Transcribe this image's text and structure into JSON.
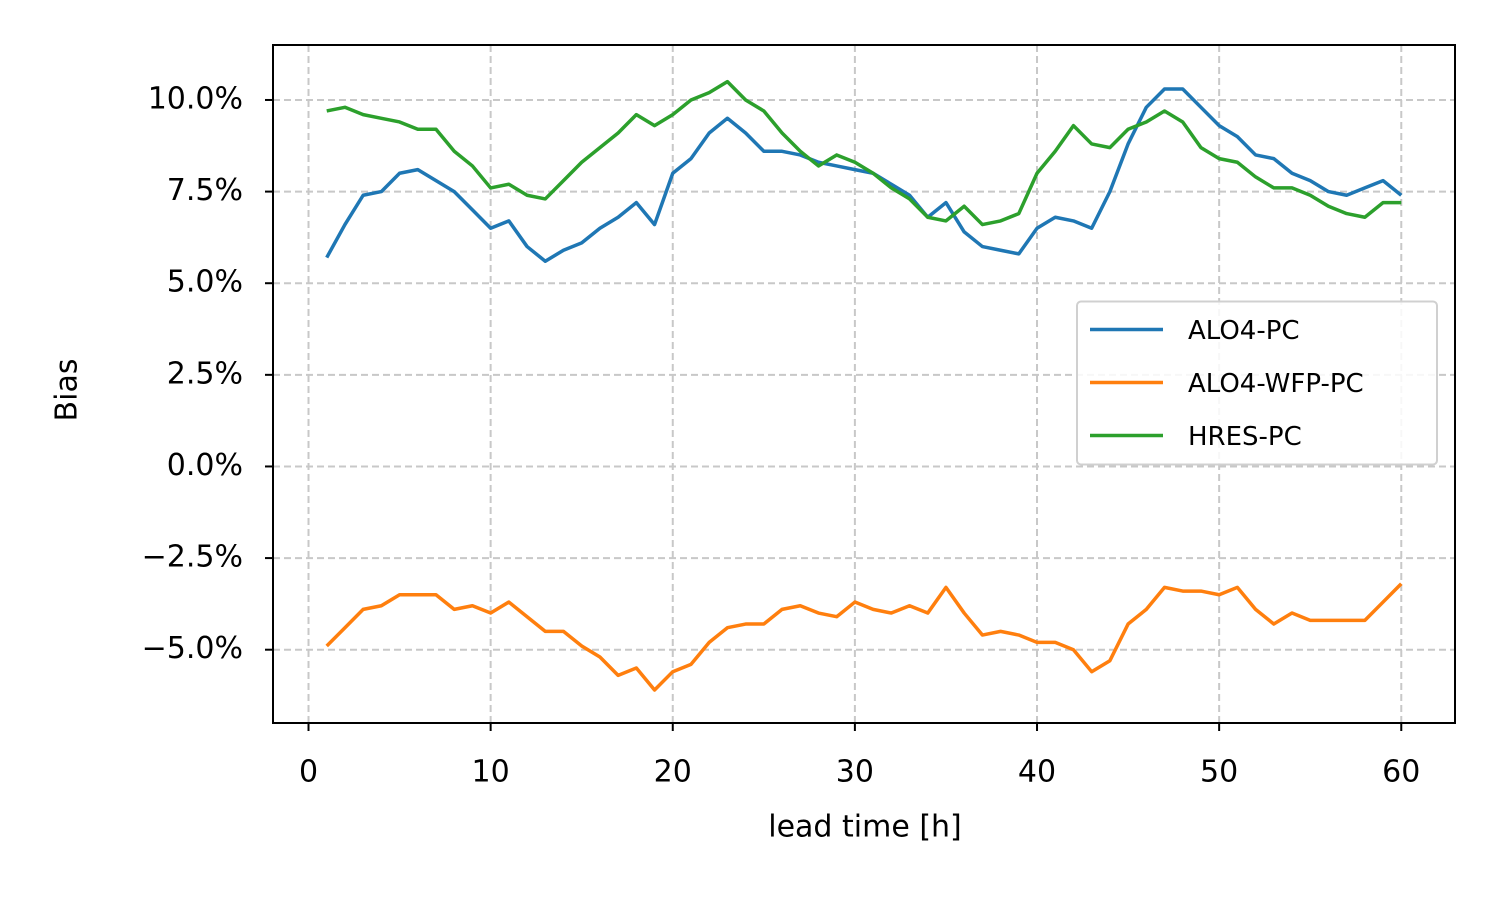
{
  "chart_data": {
    "type": "line",
    "x_label": "lead time [h]",
    "y_label": "Bias",
    "x": [
      1,
      2,
      3,
      4,
      5,
      6,
      7,
      8,
      9,
      10,
      11,
      12,
      13,
      14,
      15,
      16,
      17,
      18,
      19,
      20,
      21,
      22,
      23,
      24,
      25,
      26,
      27,
      28,
      29,
      30,
      31,
      32,
      33,
      34,
      35,
      36,
      37,
      38,
      39,
      40,
      41,
      42,
      43,
      44,
      45,
      46,
      47,
      48,
      49,
      50,
      51,
      52,
      53,
      54,
      55,
      56,
      57,
      58,
      59,
      60
    ],
    "series": [
      {
        "name": "ALO4-PC",
        "color": "#1f77b4",
        "values": [
          5.7,
          6.6,
          7.4,
          7.5,
          8.0,
          8.1,
          7.8,
          7.5,
          7.0,
          6.5,
          6.7,
          6.0,
          5.6,
          5.9,
          6.1,
          6.5,
          6.8,
          7.2,
          6.6,
          8.0,
          8.4,
          9.1,
          9.5,
          9.1,
          8.6,
          8.6,
          8.5,
          8.3,
          8.2,
          8.1,
          8.0,
          7.7,
          7.4,
          6.8,
          7.2,
          6.4,
          6.0,
          5.9,
          5.8,
          6.5,
          6.8,
          6.7,
          6.5,
          7.5,
          8.8,
          9.8,
          10.3,
          10.3,
          9.8,
          9.3,
          9.0,
          8.5,
          8.4,
          8.0,
          7.8,
          7.5,
          7.4,
          7.6,
          7.8,
          7.4
        ]
      },
      {
        "name": "ALO4-WFP-PC",
        "color": "#ff7f0e",
        "values": [
          -4.9,
          -4.4,
          -3.9,
          -3.8,
          -3.5,
          -3.5,
          -3.5,
          -3.9,
          -3.8,
          -4.0,
          -3.7,
          -4.1,
          -4.5,
          -4.5,
          -4.9,
          -5.2,
          -5.7,
          -5.5,
          -6.1,
          -5.6,
          -5.4,
          -4.8,
          -4.4,
          -4.3,
          -4.3,
          -3.9,
          -3.8,
          -4.0,
          -4.1,
          -3.7,
          -3.9,
          -4.0,
          -3.8,
          -4.0,
          -3.3,
          -4.0,
          -4.6,
          -4.5,
          -4.6,
          -4.8,
          -4.8,
          -5.0,
          -5.6,
          -5.3,
          -4.3,
          -3.9,
          -3.3,
          -3.4,
          -3.4,
          -3.5,
          -3.3,
          -3.9,
          -4.3,
          -4.0,
          -4.2,
          -4.2,
          -4.2,
          -4.2,
          -3.7,
          -3.2
        ]
      },
      {
        "name": "HRES-PC",
        "color": "#2ca02c",
        "values": [
          9.7,
          9.8,
          9.6,
          9.5,
          9.4,
          9.2,
          9.2,
          8.6,
          8.2,
          7.6,
          7.7,
          7.4,
          7.3,
          7.8,
          8.3,
          8.7,
          9.1,
          9.6,
          9.3,
          9.6,
          10.0,
          10.2,
          10.5,
          10.0,
          9.7,
          9.1,
          8.6,
          8.2,
          8.5,
          8.3,
          8.0,
          7.6,
          7.3,
          6.8,
          6.7,
          7.1,
          6.6,
          6.7,
          6.9,
          8.0,
          8.6,
          9.3,
          8.8,
          8.7,
          9.2,
          9.4,
          9.7,
          9.4,
          8.7,
          8.4,
          8.3,
          7.9,
          7.6,
          7.6,
          7.4,
          7.1,
          6.9,
          6.8,
          7.2,
          7.2
        ]
      }
    ],
    "xlim": [
      -1.95,
      62.95
    ],
    "ylim": [
      -7.0,
      11.5
    ],
    "xticks": [
      0,
      10,
      20,
      30,
      40,
      50,
      60
    ],
    "yticks": [
      {
        "value": -5,
        "label": "−5.0%"
      },
      {
        "value": -2.5,
        "label": "−2.5%"
      },
      {
        "value": 0,
        "label": "0.0%"
      },
      {
        "value": 2.5,
        "label": "2.5%"
      },
      {
        "value": 5,
        "label": "5.0%"
      },
      {
        "value": 7.5,
        "label": "7.5%"
      },
      {
        "value": 10,
        "label": "10.0%"
      }
    ],
    "grid": true,
    "legend": "center right"
  }
}
